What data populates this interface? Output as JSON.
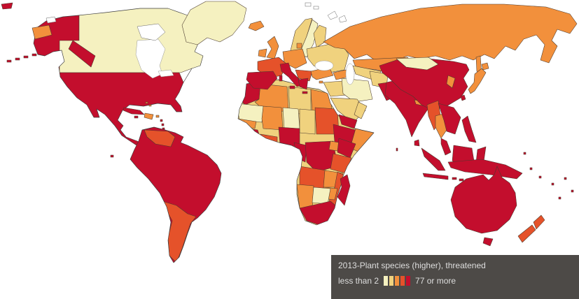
{
  "legend": {
    "title": "2013-Plant species (higher), threatened",
    "min_label": "less than 2",
    "max_label": "77 or more",
    "swatches": [
      "#F5F1C0",
      "#F0D27E",
      "#F2903C",
      "#E5522A",
      "#C30E2D"
    ],
    "background": "#4D4A47",
    "text_color": "#DEDEDE"
  },
  "map": {
    "background": "#FFFFFF",
    "border_color": "#4A3A2E",
    "palette": {
      "c1": "#F5F1C0",
      "c2": "#F0D27E",
      "c3": "#F2903C",
      "c4": "#E5522A",
      "c5": "#C30E2D"
    },
    "regions": {
      "arctic-red-sliver": "c5",
      "alaska": "c5",
      "alaska-panhandle": "c5",
      "aleutians": "c5",
      "chukotka-wrap": "c3",
      "canada": "c1",
      "usa-mexico": "c5",
      "greenland": "c1",
      "cuba": "c5",
      "hispaniola": "c3",
      "jamaica": "c5",
      "puerto-rico": "c3",
      "lesser-antilles": "c5",
      "trinidad": "c5",
      "bahamas": "c3",
      "galapagos": "c5",
      "south-america": "c5",
      "venezuela": "c4",
      "southern-cone": "c4",
      "africa-base": "c2",
      "morocco": "c5",
      "algeria": "c3",
      "libya": "c2",
      "egypt": "c3",
      "mauritania": "c1",
      "mali": "c3",
      "niger": "c1",
      "chad": "c2",
      "sudan": "c4",
      "ethiopia": "c5",
      "somalia": "c3",
      "senegal": "c3",
      "guinea": "c5",
      "ivory-coast-ghana": "c4",
      "nigeria": "c5",
      "cameroon-gabon": "c5",
      "dr-congo": "c5",
      "uganda": "c3",
      "kenya": "c5",
      "tanzania": "c4",
      "angola": "c4",
      "zambia": "c3",
      "mozambique": "c4",
      "zimbabwe": "c3",
      "namibia": "c3",
      "botswana": "c1",
      "south-africa": "c5",
      "madagascar": "c5",
      "iceland": "c3",
      "uk": "c3",
      "ireland": "c3",
      "norway": "c2",
      "sweden": "c1",
      "finland": "c2",
      "denmark": "c3",
      "germany-central-europe": "c3",
      "eastern-europe": "c2",
      "france": "c4",
      "iberia": "c5",
      "italy": "c5",
      "sardinia": "c5",
      "sicily": "c5",
      "balkans": "c4",
      "greece": "c5",
      "crete": "c5",
      "cyprus": "c3",
      "russia": "c3",
      "sakhalin": "c3",
      "caucasus": "c3",
      "kazakhstan": "c3",
      "central-asia": "c2",
      "turkey": "c3",
      "syria-iraq": "c2",
      "iran": "c1",
      "saudi-arabia": "c2",
      "yemen": "c5",
      "oman": "c2",
      "afghanistan": "c2",
      "pakistan": "c5",
      "india": "c5",
      "sri-lanka": "c5",
      "nepal": "c3",
      "bangladesh": "c4",
      "china": "c5",
      "mongolia": "c1",
      "korea": "c3",
      "japan": "c3",
      "hokkaido": "c3",
      "taiwan": "c5",
      "myanmar": "c4",
      "thailand": "c3",
      "indochina": "c5",
      "malay-peninsula": "c5",
      "sumatra": "c5",
      "java": "c5",
      "borneo": "c5",
      "sulawesi": "c5",
      "lesser-sunda": "c5",
      "new-guinea": "c5",
      "philippines": "c5",
      "australia": "c5",
      "tasmania": "c5",
      "new-zealand": "c4",
      "pacific-islands": "c5",
      "maldives": "c5"
    }
  }
}
